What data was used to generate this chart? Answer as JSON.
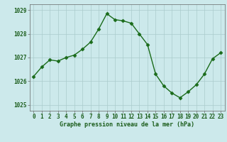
{
  "x": [
    0,
    1,
    2,
    3,
    4,
    5,
    6,
    7,
    8,
    9,
    10,
    11,
    12,
    13,
    14,
    15,
    16,
    17,
    18,
    19,
    20,
    21,
    22,
    23
  ],
  "y": [
    1026.2,
    1026.6,
    1026.9,
    1026.85,
    1027.0,
    1027.1,
    1027.35,
    1027.65,
    1028.2,
    1028.85,
    1028.6,
    1028.55,
    1028.45,
    1028.0,
    1027.55,
    1026.3,
    1025.8,
    1025.5,
    1025.3,
    1025.55,
    1025.85,
    1026.3,
    1026.95,
    1027.2
  ],
  "line_color": "#1a6b1a",
  "marker": "D",
  "markersize": 2.5,
  "linewidth": 1.0,
  "background_color": "#cce9eb",
  "grid_color": "#aacccc",
  "xlabel": "Graphe pression niveau de la mer (hPa)",
  "xlabel_color": "#1a5c1a",
  "tick_color": "#1a5c1a",
  "label_fontsize": 5.5,
  "xlabel_fontsize": 6.0,
  "ylim": [
    1024.75,
    1029.25
  ],
  "yticks": [
    1025,
    1026,
    1027,
    1028,
    1029
  ],
  "xticks": [
    0,
    1,
    2,
    3,
    4,
    5,
    6,
    7,
    8,
    9,
    10,
    11,
    12,
    13,
    14,
    15,
    16,
    17,
    18,
    19,
    20,
    21,
    22,
    23
  ],
  "spine_color": "#666666"
}
